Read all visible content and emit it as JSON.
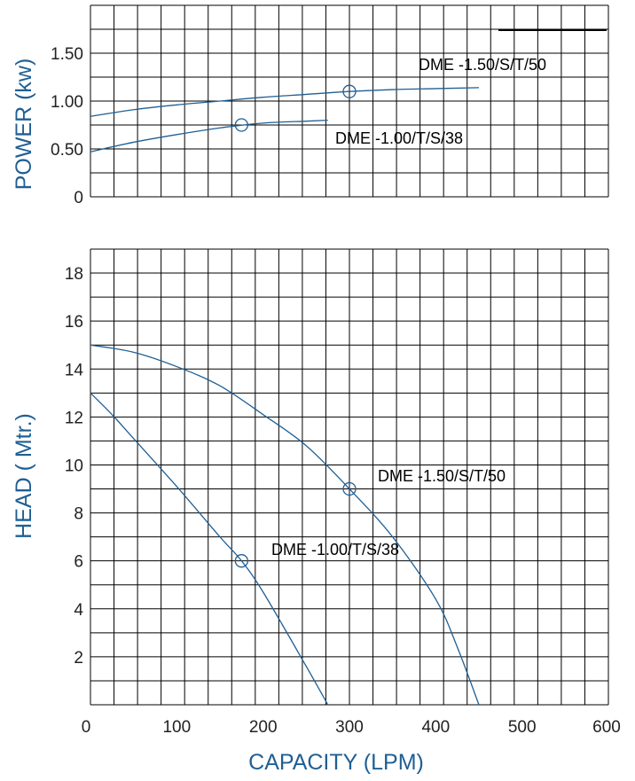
{
  "colors": {
    "grid": "#000000",
    "curve": "#1f5f94",
    "label": "#1f5f94"
  },
  "x_axis": {
    "label": "CAPACITY (LPM)",
    "ticks": [
      "0",
      "100",
      "200",
      "300",
      "400",
      "500",
      "600"
    ]
  },
  "chart_data": [
    {
      "type": "line",
      "ylabel": "POWER (kw)",
      "xlabel": "",
      "xlim": [
        0,
        600
      ],
      "ylim": [
        0,
        2
      ],
      "y_tick_values": [
        0,
        0.5,
        1,
        1.5
      ],
      "y_tick_labels": [
        "0",
        "0.50",
        "1.00",
        "1.50"
      ],
      "grid": true,
      "series": [
        {
          "name": "DME -1.50/S/T/50",
          "x": [
            0,
            50,
            100,
            150,
            200,
            250,
            300,
            350,
            400,
            450
          ],
          "y": [
            0.84,
            0.91,
            0.96,
            1.0,
            1.04,
            1.07,
            1.1,
            1.12,
            1.13,
            1.14
          ],
          "rated_point": {
            "x": 300,
            "y": 1.1
          }
        },
        {
          "name": "DME -1.00/T/S/38",
          "x": [
            0,
            50,
            100,
            150,
            200,
            250,
            275
          ],
          "y": [
            0.47,
            0.57,
            0.65,
            0.72,
            0.77,
            0.79,
            0.8
          ],
          "rated_point": {
            "x": 175,
            "y": 0.75
          }
        }
      ]
    },
    {
      "type": "line",
      "ylabel": "HEAD ( Mtr.)",
      "xlabel": "CAPACITY (LPM)",
      "xlim": [
        0,
        600
      ],
      "ylim": [
        0,
        19
      ],
      "y_tick_values": [
        2,
        4,
        6,
        8,
        10,
        12,
        14,
        16,
        18
      ],
      "y_tick_labels": [
        "2",
        "4",
        "6",
        "8",
        "10",
        "12",
        "14",
        "16",
        "18"
      ],
      "grid": true,
      "series": [
        {
          "name": "DME -1.50/S/T/50",
          "x": [
            0,
            50,
            100,
            150,
            200,
            250,
            300,
            350,
            400,
            425,
            450
          ],
          "y": [
            15.0,
            14.7,
            14.1,
            13.3,
            12.1,
            10.8,
            9.0,
            7.0,
            4.4,
            2.4,
            0.0
          ],
          "rated_point": {
            "x": 300,
            "y": 9.0
          }
        },
        {
          "name": "DME -1.00/T/S/38",
          "x": [
            0,
            25,
            50,
            100,
            150,
            175,
            200,
            250,
            275
          ],
          "y": [
            13.0,
            12.1,
            11.1,
            9.1,
            7.0,
            6.0,
            4.7,
            1.6,
            0.0
          ],
          "rated_point": {
            "x": 175,
            "y": 6.0
          }
        }
      ]
    }
  ]
}
